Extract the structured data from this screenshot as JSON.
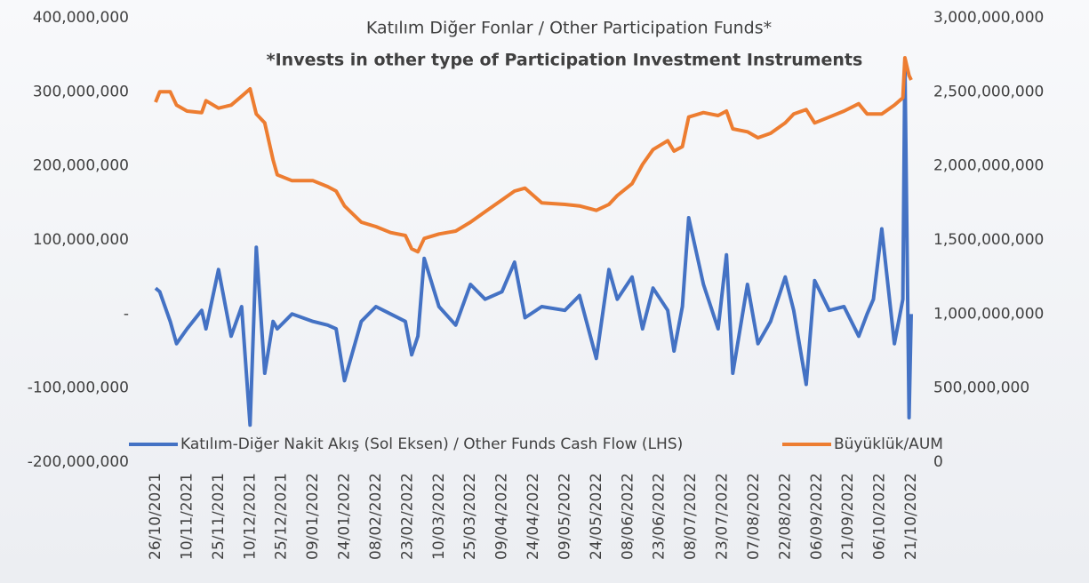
{
  "chart_data": {
    "type": "line",
    "title": "Katılım Diğer Fonlar / Other Participation Funds*",
    "subtitle": "*Invests in other type of Participation Investment Instruments",
    "x": [
      "26/10/2021",
      "28/10/2021",
      "02/11/2021",
      "05/11/2021",
      "10/11/2021",
      "17/11/2021",
      "19/11/2021",
      "25/11/2021",
      "01/12/2021",
      "06/12/2021",
      "10/12/2021",
      "13/12/2021",
      "17/12/2021",
      "21/12/2021",
      "23/12/2021",
      "30/12/2021",
      "09/01/2022",
      "16/01/2022",
      "20/01/2022",
      "24/01/2022",
      "01/02/2022",
      "08/02/2022",
      "15/02/2022",
      "22/02/2022",
      "25/02/2022",
      "28/02/2022",
      "03/03/2022",
      "10/03/2022",
      "18/03/2022",
      "25/03/2022",
      "01/04/2022",
      "09/04/2022",
      "15/04/2022",
      "20/04/2022",
      "28/04/2022",
      "09/05/2022",
      "16/05/2022",
      "24/05/2022",
      "30/05/2022",
      "03/06/2022",
      "10/06/2022",
      "15/06/2022",
      "20/06/2022",
      "27/06/2022",
      "30/06/2022",
      "04/07/2022",
      "07/07/2022",
      "14/07/2022",
      "21/07/2022",
      "25/07/2022",
      "28/07/2022",
      "04/08/2022",
      "09/08/2022",
      "15/08/2022",
      "22/08/2022",
      "26/08/2022",
      "01/09/2022",
      "05/09/2022",
      "12/09/2022",
      "19/09/2022",
      "26/09/2022",
      "30/09/2022",
      "03/10/2022",
      "07/10/2022",
      "13/10/2022",
      "17/10/2022",
      "18/10/2022",
      "20/10/2022",
      "21/10/2022"
    ],
    "series": [
      {
        "name": "Katılım-Diğer Nakit Akış (Sol Eksen) / Other Funds Cash Flow (LHS)",
        "color": "#4472c4",
        "axis": "y",
        "values": [
          35000000,
          30000000,
          -10000000,
          -40000000,
          -20000000,
          5000000,
          -20000000,
          60000000,
          -30000000,
          10000000,
          -150000000,
          90000000,
          -80000000,
          -10000000,
          -20000000,
          0,
          -10000000,
          -15000000,
          -20000000,
          -90000000,
          -10000000,
          10000000,
          0,
          -10000000,
          -55000000,
          -30000000,
          75000000,
          10000000,
          -15000000,
          40000000,
          20000000,
          30000000,
          70000000,
          -5000000,
          10000000,
          5000000,
          25000000,
          -60000000,
          60000000,
          20000000,
          50000000,
          -20000000,
          35000000,
          5000000,
          -50000000,
          10000000,
          130000000,
          40000000,
          -20000000,
          80000000,
          -80000000,
          40000000,
          -40000000,
          -10000000,
          50000000,
          5000000,
          -95000000,
          45000000,
          5000000,
          10000000,
          -30000000,
          0,
          20000000,
          115000000,
          -40000000,
          20000000,
          340000000,
          -140000000,
          0
        ]
      },
      {
        "name": "Büyüklük/AUM",
        "color": "#ed7d31",
        "axis": "y2",
        "values": [
          2430000000,
          2500000000,
          2500000000,
          2410000000,
          2370000000,
          2360000000,
          2440000000,
          2390000000,
          2410000000,
          2470000000,
          2520000000,
          2350000000,
          2290000000,
          2040000000,
          1940000000,
          1900000000,
          1900000000,
          1860000000,
          1830000000,
          1730000000,
          1620000000,
          1590000000,
          1550000000,
          1530000000,
          1440000000,
          1420000000,
          1510000000,
          1540000000,
          1560000000,
          1620000000,
          1690000000,
          1770000000,
          1830000000,
          1850000000,
          1750000000,
          1740000000,
          1730000000,
          1700000000,
          1740000000,
          1800000000,
          1880000000,
          2010000000,
          2110000000,
          2170000000,
          2100000000,
          2130000000,
          2330000000,
          2360000000,
          2340000000,
          2370000000,
          2250000000,
          2230000000,
          2190000000,
          2220000000,
          2290000000,
          2350000000,
          2380000000,
          2290000000,
          2330000000,
          2370000000,
          2420000000,
          2350000000,
          2350000000,
          2350000000,
          2410000000,
          2460000000,
          2730000000,
          2610000000,
          2580000000
        ]
      }
    ],
    "xticks": [
      "26/10/2021",
      "10/11/2021",
      "25/11/2021",
      "10/12/2021",
      "25/12/2021",
      "09/01/2022",
      "24/01/2022",
      "08/02/2022",
      "23/02/2022",
      "10/03/2022",
      "25/03/2022",
      "09/04/2022",
      "24/04/2022",
      "09/05/2022",
      "24/05/2022",
      "08/06/2022",
      "23/06/2022",
      "08/07/2022",
      "23/07/2022",
      "07/08/2022",
      "22/08/2022",
      "06/09/2022",
      "21/09/2022",
      "06/10/2022",
      "21/10/2022"
    ],
    "ylim": [
      -200000000,
      400000000
    ],
    "yticks": [
      {
        "value": -200000000,
        "label": "-200,000,000"
      },
      {
        "value": -100000000,
        "label": "-100,000,000"
      },
      {
        "value": 0,
        "label": "-"
      },
      {
        "value": 100000000,
        "label": "100,000,000"
      },
      {
        "value": 200000000,
        "label": "200,000,000"
      },
      {
        "value": 300000000,
        "label": "300,000,000"
      },
      {
        "value": 400000000,
        "label": "400,000,000"
      }
    ],
    "y2lim": [
      0,
      3000000000
    ],
    "y2ticks": [
      0,
      {
        "value": 500000000,
        "label": "500,000,000"
      },
      {
        "value": 1000000000,
        "label": "1,000,000,000"
      },
      {
        "value": 1500000000,
        "label": "1,500,000,000"
      },
      {
        "value": 2000000000,
        "label": "2,000,000,000"
      },
      {
        "value": 2500000000,
        "label": "2,500,000,000"
      },
      {
        "value": 3000000000,
        "label": "3,000,000,000"
      }
    ],
    "legend": "bottom"
  }
}
